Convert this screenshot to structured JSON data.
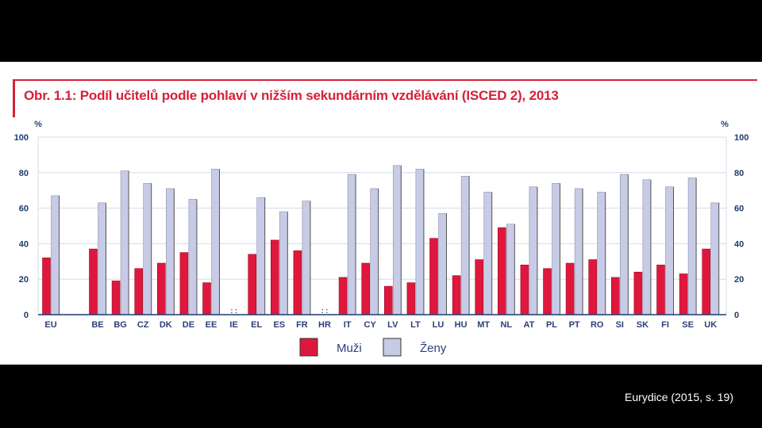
{
  "caption": "Eurydice (2015, s. 19)",
  "colors": {
    "men": "#e0173d",
    "women": "#c8cbe6",
    "title": "#d6203a",
    "axis": "#1f3a6e",
    "grid": "#d3dbe8"
  },
  "chart_data": {
    "type": "bar",
    "title": "Obr. 1.1: Podíl učitelů podle pohlaví v nižším sekundárním vzdělávání (ISCED 2), 2013",
    "ylabel_left": "%",
    "ylabel_right": "%",
    "ylim": [
      0,
      100
    ],
    "yticks": [
      0,
      20,
      40,
      60,
      80,
      100
    ],
    "na_marker": ": :",
    "categories": [
      "EU",
      "BE",
      "BG",
      "CZ",
      "DK",
      "DE",
      "EE",
      "IE",
      "EL",
      "ES",
      "FR",
      "HR",
      "IT",
      "CY",
      "LV",
      "LT",
      "LU",
      "HU",
      "MT",
      "NL",
      "AT",
      "PL",
      "PT",
      "RO",
      "SI",
      "SK",
      "FI",
      "SE",
      "UK"
    ],
    "series": [
      {
        "name": "Muži",
        "values": [
          32,
          37,
          19,
          26,
          29,
          35,
          18,
          null,
          34,
          42,
          36,
          null,
          21,
          29,
          16,
          18,
          43,
          22,
          31,
          49,
          28,
          26,
          29,
          31,
          21,
          24,
          28,
          23,
          37
        ]
      },
      {
        "name": "Ženy",
        "values": [
          67,
          63,
          81,
          74,
          71,
          65,
          82,
          null,
          66,
          58,
          64,
          null,
          79,
          71,
          84,
          82,
          57,
          78,
          69,
          51,
          72,
          74,
          71,
          69,
          79,
          76,
          72,
          77,
          63
        ]
      }
    ],
    "legend": [
      "Muži",
      "Ženy"
    ]
  }
}
